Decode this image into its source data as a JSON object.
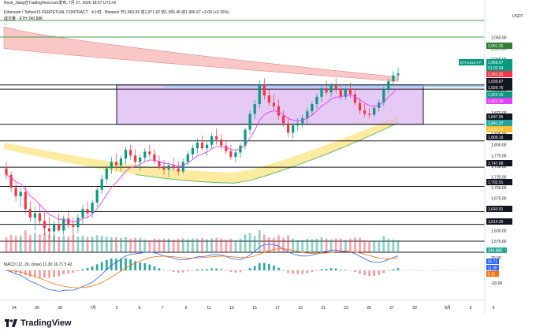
{
  "header": {
    "credit": "Rock_Jiang在TradingView.com发布, 7月 27, 2026 18:57 UTC+8",
    "symbol_line": "Ethereum / TetherUS PERPETUAL CONTRACT · 4小时 · Binance 开1,963.59 高1,971.62 低1,955.46 收1,966.67 +3.09 (+0.16%)",
    "volume_line": "成交量 · ETH 240.88K",
    "dots": "..."
  },
  "brand": {
    "name": "TradingView",
    "icon": "tradingview-logo-icon"
  },
  "chart_data": {
    "type": "candlestick",
    "timeframe": "4h",
    "currency_label": "USDT",
    "y_ticks": [
      2050,
      2025,
      2000,
      1975,
      1950,
      1925,
      1900,
      1875,
      1850,
      1825,
      1800,
      1775,
      1750,
      1725,
      1700,
      1675,
      1650,
      1625,
      1600,
      1575
    ],
    "y_tick_labels": [
      "2,050.00",
      "2,025.00",
      "2,000.00",
      "1,975.00",
      "1,950.00",
      "1,925.00",
      "1,900.00",
      "1,875.00",
      "1,850.00",
      "1,825.00",
      "1,800.00",
      "1,775.00",
      "1,750.00",
      "1,725.00",
      "1,700.00",
      "1,675.00",
      "1,650.00",
      "1,625.00",
      "1,600.00",
      "1,575.00"
    ],
    "x_labels": [
      "24",
      "26",
      "28",
      "7月",
      "3",
      "5",
      "7",
      "9",
      "11",
      "13",
      "15",
      "17",
      "19",
      "21",
      "23",
      "25",
      "27",
      "29",
      "8月",
      "3",
      "5"
    ],
    "ohlc_series": [
      [
        1745,
        1760,
        1720,
        1730
      ],
      [
        1730,
        1738,
        1690,
        1700
      ],
      [
        1700,
        1712,
        1668,
        1680
      ],
      [
        1680,
        1700,
        1655,
        1690
      ],
      [
        1690,
        1705,
        1640,
        1650
      ],
      [
        1650,
        1668,
        1620,
        1630
      ],
      [
        1630,
        1655,
        1600,
        1640
      ],
      [
        1640,
        1662,
        1612,
        1622
      ],
      [
        1622,
        1645,
        1590,
        1605
      ],
      [
        1605,
        1630,
        1580,
        1598
      ],
      [
        1598,
        1622,
        1575,
        1615
      ],
      [
        1615,
        1640,
        1598,
        1600
      ],
      [
        1600,
        1635,
        1590,
        1628
      ],
      [
        1628,
        1648,
        1605,
        1612
      ],
      [
        1612,
        1630,
        1584,
        1608
      ],
      [
        1608,
        1638,
        1595,
        1630
      ],
      [
        1630,
        1660,
        1615,
        1650
      ],
      [
        1650,
        1668,
        1628,
        1640
      ],
      [
        1640,
        1672,
        1630,
        1665
      ],
      [
        1665,
        1702,
        1655,
        1695
      ],
      [
        1695,
        1730,
        1685,
        1720
      ],
      [
        1720,
        1750,
        1708,
        1745
      ],
      [
        1745,
        1772,
        1732,
        1760
      ],
      [
        1760,
        1780,
        1740,
        1752
      ],
      [
        1752,
        1775,
        1738,
        1768
      ],
      [
        1768,
        1795,
        1755,
        1788
      ],
      [
        1788,
        1800,
        1765,
        1775
      ],
      [
        1775,
        1790,
        1752,
        1760
      ],
      [
        1760,
        1778,
        1740,
        1770
      ],
      [
        1770,
        1792,
        1760,
        1784
      ],
      [
        1784,
        1800,
        1770,
        1778
      ],
      [
        1778,
        1790,
        1755,
        1762
      ],
      [
        1762,
        1775,
        1742,
        1750
      ],
      [
        1750,
        1765,
        1730,
        1742
      ],
      [
        1742,
        1760,
        1725,
        1752
      ],
      [
        1752,
        1770,
        1738,
        1745
      ],
      [
        1745,
        1762,
        1728,
        1738
      ],
      [
        1738,
        1768,
        1732,
        1760
      ],
      [
        1760,
        1785,
        1752,
        1778
      ],
      [
        1778,
        1800,
        1765,
        1792
      ],
      [
        1792,
        1815,
        1780,
        1805
      ],
      [
        1805,
        1822,
        1785,
        1792
      ],
      [
        1792,
        1808,
        1775,
        1800
      ],
      [
        1800,
        1828,
        1792,
        1820
      ],
      [
        1820,
        1838,
        1800,
        1812
      ],
      [
        1812,
        1825,
        1790,
        1798
      ],
      [
        1798,
        1810,
        1778,
        1785
      ],
      [
        1785,
        1800,
        1765,
        1772
      ],
      [
        1772,
        1790,
        1760,
        1782
      ],
      [
        1782,
        1805,
        1770,
        1798
      ],
      [
        1798,
        1840,
        1790,
        1835
      ],
      [
        1835,
        1880,
        1825,
        1872
      ],
      [
        1872,
        1905,
        1860,
        1895
      ],
      [
        1895,
        1950,
        1885,
        1940
      ],
      [
        1940,
        1955,
        1905,
        1915
      ],
      [
        1915,
        1930,
        1890,
        1898
      ],
      [
        1898,
        1918,
        1880,
        1890
      ],
      [
        1890,
        1905,
        1858,
        1868
      ],
      [
        1868,
        1880,
        1842,
        1850
      ],
      [
        1850,
        1865,
        1818,
        1828
      ],
      [
        1828,
        1850,
        1815,
        1845
      ],
      [
        1845,
        1862,
        1832,
        1850
      ],
      [
        1850,
        1870,
        1840,
        1862
      ],
      [
        1862,
        1885,
        1850,
        1878
      ],
      [
        1878,
        1902,
        1868,
        1895
      ],
      [
        1895,
        1920,
        1885,
        1912
      ],
      [
        1912,
        1940,
        1900,
        1932
      ],
      [
        1932,
        1950,
        1915,
        1922
      ],
      [
        1922,
        1945,
        1912,
        1938
      ],
      [
        1938,
        1955,
        1920,
        1928
      ],
      [
        1928,
        1940,
        1905,
        1912
      ],
      [
        1912,
        1935,
        1905,
        1930
      ],
      [
        1930,
        1945,
        1910,
        1918
      ],
      [
        1918,
        1930,
        1892,
        1898
      ],
      [
        1898,
        1910,
        1872,
        1880
      ],
      [
        1880,
        1895,
        1865,
        1872
      ],
      [
        1872,
        1885,
        1862,
        1870
      ],
      [
        1870,
        1890,
        1865,
        1886
      ],
      [
        1886,
        1905,
        1878,
        1898
      ],
      [
        1898,
        1935,
        1890,
        1928
      ],
      [
        1928,
        1955,
        1920,
        1948
      ],
      [
        1948,
        1972,
        1940,
        1962
      ],
      [
        1962,
        1980,
        1950,
        1966
      ]
    ],
    "price_scale_badges": [
      {
        "label": "ETHUSDT.P",
        "value": "1,966.67",
        "color": "#089981"
      },
      {
        "value": "01:02:34",
        "color": "#089981"
      },
      {
        "value": "1,963.86",
        "color": "#f23645"
      },
      {
        "value": "1,939.67",
        "color": "#131722"
      },
      {
        "value": "1,929.76",
        "color": "#131722"
      },
      {
        "value": "1,923.15",
        "color": "#089981"
      },
      {
        "value": "1,922.29",
        "color": "#e040fb"
      },
      {
        "value": "1,847.95",
        "color": "#131722"
      },
      {
        "value": "1,841.37",
        "color": "#26a69a"
      },
      {
        "value": "1,833.74",
        "color": "#fbc02d"
      },
      {
        "value": "1,809.16",
        "color": "#131722"
      },
      {
        "value": "1,747.68",
        "color": "#131722"
      },
      {
        "value": "1,702.91",
        "color": "#131722"
      },
      {
        "value": "1,643.91",
        "color": "#131722"
      },
      {
        "value": "1,614.26",
        "color": "#131722"
      },
      {
        "value": "2,051.25",
        "color": "#2e7d32"
      }
    ],
    "horizontal_levels": [
      2090,
      2051.25,
      1939.67,
      1929.76,
      1847.95,
      1809.16,
      1747.68,
      1702.91,
      1643.91,
      1614.26,
      1575
    ],
    "rectangle": {
      "top": 1939.67,
      "bottom": 1847.95,
      "fill": "#d9b3f0"
    },
    "volume": {
      "label": "成交量",
      "last": "240.88K",
      "badge_value": "240.88K"
    },
    "macd": {
      "label": "MACD (12, 26, close)",
      "values": [
        "11.30",
        "16.71",
        "5.42"
      ],
      "y_ticks": [
        20,
        0,
        -20
      ],
      "y_tick_labels": [
        "20.00",
        "0.00",
        "-20.00"
      ],
      "badge_macd": "16.71",
      "badge_signal": "11.30",
      "badge_hist": "5.42"
    },
    "colors": {
      "up": "#089981",
      "down": "#f23645",
      "macd_line": "#2962ff",
      "signal_line": "#ff6d00",
      "ma_pink": "#e040fb",
      "ribbon_red": "#f8b4b4",
      "ribbon_yellow": "#fde68a",
      "ribbon_green": "#a7e0c8"
    }
  }
}
